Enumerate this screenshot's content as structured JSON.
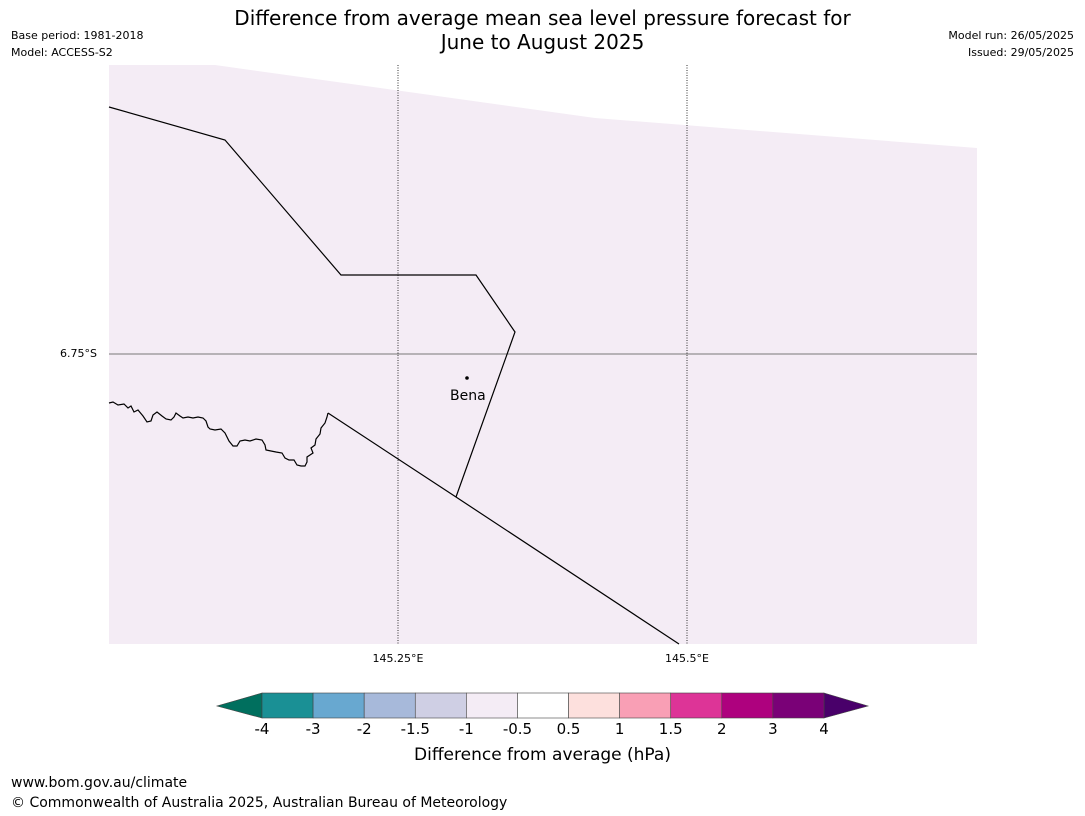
{
  "title_line1": "Difference from average mean sea level pressure forecast for",
  "title_line2": "June to August 2025",
  "base_period": "Base period: 1981-2018",
  "model": "Model: ACCESS-S2",
  "model_run": "Model run: 26/05/2025",
  "issued": "Issued: 29/05/2025",
  "map": {
    "lat_label": "6.75°S",
    "lon_labels": [
      "145.25°E",
      "145.5°E"
    ],
    "place": "Bena",
    "fill_color": "#f4ecf5"
  },
  "colorbar": {
    "ticks": [
      "-4",
      "-3",
      "-2",
      "-1.5",
      "-1",
      "-0.5",
      "0.5",
      "1",
      "1.5",
      "2",
      "3",
      "4"
    ],
    "colors": [
      "#1a9095",
      "#68a8d0",
      "#a7b9da",
      "#cfcfe4",
      "#f4ecf5",
      "#ffffff",
      "#fde0dd",
      "#f99fb5",
      "#dd3497",
      "#ae017e",
      "#7a0177"
    ],
    "under_color": "#006f5e",
    "over_color": "#49006a",
    "title": "Difference from average (hPa)"
  },
  "footer_url": "www.bom.gov.au/climate",
  "footer_copyright": "© Commonwealth of Australia 2025, Australian Bureau of Meteorology"
}
